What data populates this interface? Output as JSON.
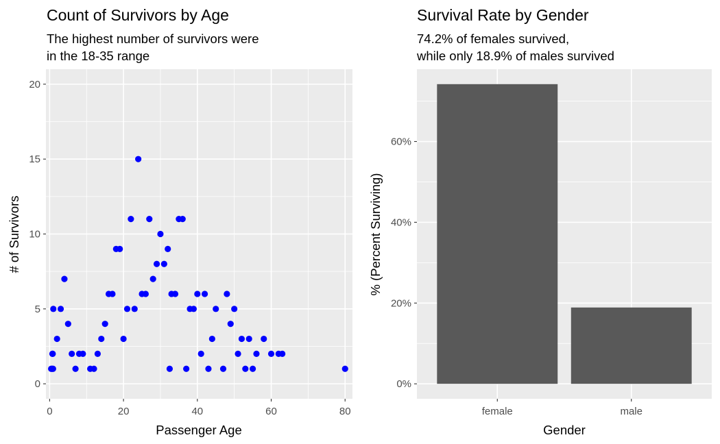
{
  "chart_data": [
    {
      "type": "scatter",
      "title": "Count of Survivors by Age",
      "subtitle_lines": [
        "The highest number of survivors were",
        "in the 18-35 range"
      ],
      "xlabel": "Passenger Age",
      "ylabel": "# of Survivors",
      "xlim": [
        -1,
        82
      ],
      "ylim": [
        -1,
        21
      ],
      "x_ticks": [
        0,
        20,
        40,
        60,
        80
      ],
      "y_ticks": [
        0,
        5,
        10,
        15,
        20
      ],
      "x_tick_labels": [
        "0",
        "20",
        "40",
        "60",
        "80"
      ],
      "y_tick_labels": [
        "0",
        "5",
        "10",
        "15",
        "20"
      ],
      "grid": true,
      "point_color": "#0000ff",
      "points": [
        {
          "x": 0.42,
          "y": 1
        },
        {
          "x": 0.67,
          "y": 1
        },
        {
          "x": 0.75,
          "y": 2
        },
        {
          "x": 0.83,
          "y": 2
        },
        {
          "x": 0.92,
          "y": 1
        },
        {
          "x": 1,
          "y": 5
        },
        {
          "x": 2,
          "y": 3
        },
        {
          "x": 3,
          "y": 5
        },
        {
          "x": 4,
          "y": 7
        },
        {
          "x": 5,
          "y": 4
        },
        {
          "x": 6,
          "y": 2
        },
        {
          "x": 7,
          "y": 1
        },
        {
          "x": 8,
          "y": 2
        },
        {
          "x": 9,
          "y": 2
        },
        {
          "x": 11,
          "y": 1
        },
        {
          "x": 12,
          "y": 1
        },
        {
          "x": 13,
          "y": 2
        },
        {
          "x": 14,
          "y": 3
        },
        {
          "x": 15,
          "y": 4
        },
        {
          "x": 16,
          "y": 6
        },
        {
          "x": 17,
          "y": 6
        },
        {
          "x": 18,
          "y": 9
        },
        {
          "x": 19,
          "y": 9
        },
        {
          "x": 20,
          "y": 3
        },
        {
          "x": 21,
          "y": 5
        },
        {
          "x": 22,
          "y": 11
        },
        {
          "x": 23,
          "y": 5
        },
        {
          "x": 24,
          "y": 15
        },
        {
          "x": 25,
          "y": 6
        },
        {
          "x": 26,
          "y": 6
        },
        {
          "x": 27,
          "y": 11
        },
        {
          "x": 28,
          "y": 7
        },
        {
          "x": 29,
          "y": 8
        },
        {
          "x": 30,
          "y": 10
        },
        {
          "x": 31,
          "y": 8
        },
        {
          "x": 32,
          "y": 9
        },
        {
          "x": 32.5,
          "y": 1
        },
        {
          "x": 33,
          "y": 6
        },
        {
          "x": 34,
          "y": 6
        },
        {
          "x": 35,
          "y": 11
        },
        {
          "x": 36,
          "y": 11
        },
        {
          "x": 37,
          "y": 1
        },
        {
          "x": 38,
          "y": 5
        },
        {
          "x": 39,
          "y": 5
        },
        {
          "x": 40,
          "y": 6
        },
        {
          "x": 41,
          "y": 2
        },
        {
          "x": 42,
          "y": 6
        },
        {
          "x": 43,
          "y": 1
        },
        {
          "x": 44,
          "y": 3
        },
        {
          "x": 45,
          "y": 5
        },
        {
          "x": 47,
          "y": 1
        },
        {
          "x": 48,
          "y": 6
        },
        {
          "x": 49,
          "y": 4
        },
        {
          "x": 50,
          "y": 5
        },
        {
          "x": 51,
          "y": 2
        },
        {
          "x": 52,
          "y": 3
        },
        {
          "x": 53,
          "y": 1
        },
        {
          "x": 54,
          "y": 3
        },
        {
          "x": 55,
          "y": 1
        },
        {
          "x": 56,
          "y": 2
        },
        {
          "x": 58,
          "y": 3
        },
        {
          "x": 60,
          "y": 2
        },
        {
          "x": 62,
          "y": 2
        },
        {
          "x": 63,
          "y": 2
        },
        {
          "x": 80,
          "y": 1
        }
      ]
    },
    {
      "type": "bar",
      "title": "Survival Rate by Gender",
      "subtitle_lines": [
        "74.2% of females survived,",
        "while only 18.9% of males survived"
      ],
      "xlabel": "Gender",
      "ylabel": "% (Percent Surviving)",
      "categories": [
        "female",
        "male"
      ],
      "values": [
        0.742,
        0.189
      ],
      "ylim": [
        -0.037,
        0.779
      ],
      "y_ticks": [
        0,
        0.2,
        0.4,
        0.6
      ],
      "y_tick_labels": [
        "0%",
        "20%",
        "40%",
        "60%"
      ],
      "grid": true,
      "bar_color": "#595959"
    }
  ]
}
